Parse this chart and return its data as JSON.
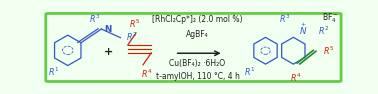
{
  "background_color": "#f0fff0",
  "border_color": "#66cc44",
  "border_linewidth": 2.0,
  "fig_width": 3.78,
  "fig_height": 0.94,
  "dpi": 100,
  "reagent_line1": "[RhCl₂Cp*]₂ (2.0 mol %)",
  "reagent_line2": "AgBF₄",
  "reagent_line3": "Cu(BF₄)₂ ·6H₂O",
  "reagent_line4": "t-amylOH, 110 °C, 4 h",
  "blue_color": "#3355cc",
  "red_color": "#cc2200",
  "green_color": "#228833",
  "black_color": "#222222",
  "font_size_reagent": 5.5,
  "font_size_label": 5.8
}
